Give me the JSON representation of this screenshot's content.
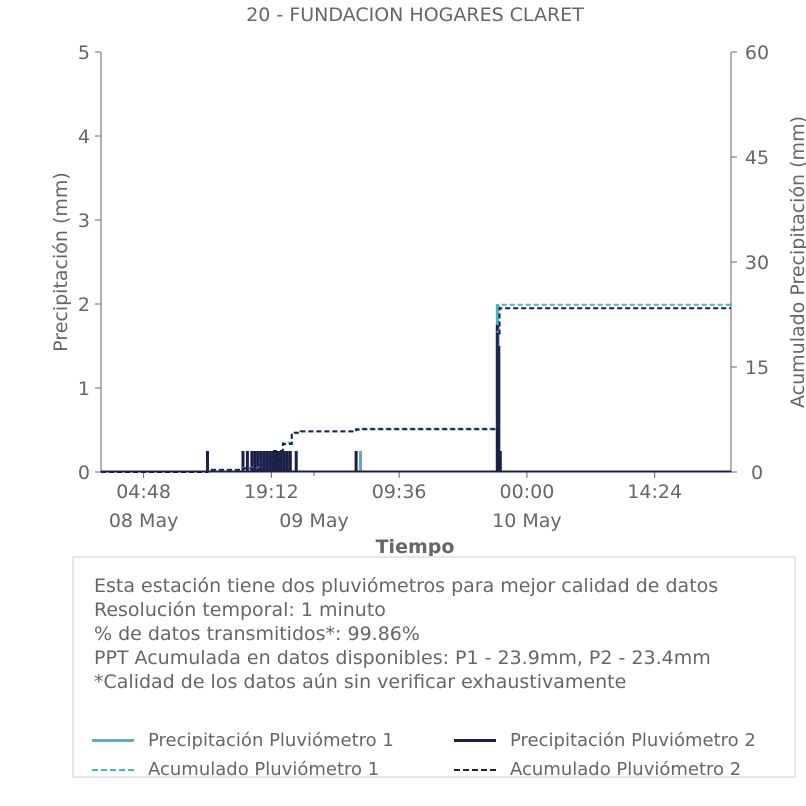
{
  "chart_data": {
    "type": "line",
    "title": "20 - FUNDACION HOGARES CLARET",
    "xlabel": "Tiempo",
    "ylabel": "Precipitación (mm)",
    "y2label": "Acumulado Precipitación (mm)",
    "x_range": [
      "2024-05-08T00:00",
      "2024-05-10T23:00"
    ],
    "ylim": [
      0,
      5
    ],
    "y2lim": [
      0,
      60
    ],
    "yticks": [
      0,
      1,
      2,
      3,
      4,
      5
    ],
    "y2ticks": [
      0,
      15,
      30,
      45,
      60
    ],
    "xticks": [
      {
        "t": "2024-05-08T04:48",
        "time": "04:48",
        "date": "08 May"
      },
      {
        "t": "2024-05-08T19:12",
        "time": "19:12",
        "date": ""
      },
      {
        "t": "2024-05-09T00:00",
        "time": "",
        "date": "09 May"
      },
      {
        "t": "2024-05-09T09:36",
        "time": "09:36",
        "date": ""
      },
      {
        "t": "2024-05-10T00:00",
        "time": "00:00",
        "date": "10 May"
      },
      {
        "t": "2024-05-10T14:24",
        "time": "14:24",
        "date": ""
      }
    ],
    "grid": false,
    "legend_position": "bottom",
    "series": [
      {
        "name": "Precipitación Pluviómetro 1",
        "axis": "left",
        "style": "bars",
        "color": "#4ab3c4",
        "points": [
          [
            "2024-05-08T20:00",
            0.25
          ],
          [
            "2024-05-09T05:15",
            0.25
          ],
          [
            "2024-05-09T20:40",
            2.0
          ],
          [
            "2024-05-09T20:45",
            1.8
          ]
        ]
      },
      {
        "name": "Precipitación Pluviómetro 2",
        "axis": "left",
        "style": "bars",
        "color": "#1c1f4a",
        "points": [
          [
            "2024-05-08T12:00",
            0.25
          ],
          [
            "2024-05-08T16:00",
            0.25
          ],
          [
            "2024-05-08T16:30",
            0.25
          ],
          [
            "2024-05-08T17:00",
            0.25
          ],
          [
            "2024-05-08T17:20",
            0.25
          ],
          [
            "2024-05-08T17:40",
            0.25
          ],
          [
            "2024-05-08T18:00",
            0.25
          ],
          [
            "2024-05-08T18:20",
            0.25
          ],
          [
            "2024-05-08T18:40",
            0.25
          ],
          [
            "2024-05-08T19:00",
            0.25
          ],
          [
            "2024-05-08T19:20",
            0.25
          ],
          [
            "2024-05-08T19:40",
            0.25
          ],
          [
            "2024-05-08T20:00",
            0.25
          ],
          [
            "2024-05-08T20:20",
            0.25
          ],
          [
            "2024-05-08T20:40",
            0.25
          ],
          [
            "2024-05-08T21:00",
            0.25
          ],
          [
            "2024-05-08T21:20",
            0.25
          ],
          [
            "2024-05-08T22:00",
            0.25
          ],
          [
            "2024-05-09T04:45",
            0.25
          ],
          [
            "2024-05-09T20:40",
            1.75
          ],
          [
            "2024-05-09T20:50",
            1.5
          ],
          [
            "2024-05-09T21:00",
            0.25
          ]
        ]
      },
      {
        "name": "Acumulado Pluviómetro 1",
        "axis": "right",
        "style": "dashed-step",
        "color": "#4ab3c4",
        "points": [
          [
            "2024-05-08T00:00",
            0
          ],
          [
            "2024-05-08T12:00",
            0.3
          ],
          [
            "2024-05-08T16:00",
            0.6
          ],
          [
            "2024-05-08T18:00",
            1.8
          ],
          [
            "2024-05-08T19:30",
            3.0
          ],
          [
            "2024-05-08T20:30",
            4.2
          ],
          [
            "2024-05-08T21:30",
            5.6
          ],
          [
            "2024-05-08T22:30",
            5.8
          ],
          [
            "2024-05-09T04:45",
            6.0
          ],
          [
            "2024-05-09T05:15",
            6.2
          ],
          [
            "2024-05-09T20:40",
            20.0
          ],
          [
            "2024-05-09T20:50",
            23.9
          ],
          [
            "2024-05-10T23:00",
            23.9
          ]
        ]
      },
      {
        "name": "Acumulado Pluviómetro 2",
        "axis": "right",
        "style": "dashed-step",
        "color": "#1c1f4a",
        "points": [
          [
            "2024-05-08T00:00",
            0
          ],
          [
            "2024-05-08T12:00",
            0.3
          ],
          [
            "2024-05-08T16:00",
            0.5
          ],
          [
            "2024-05-08T18:00",
            1.8
          ],
          [
            "2024-05-08T19:30",
            3.0
          ],
          [
            "2024-05-08T20:30",
            4.0
          ],
          [
            "2024-05-08T21:30",
            5.6
          ],
          [
            "2024-05-08T22:30",
            5.8
          ],
          [
            "2024-05-09T04:45",
            6.1
          ],
          [
            "2024-05-09T20:40",
            19.5
          ],
          [
            "2024-05-09T20:55",
            23.4
          ],
          [
            "2024-05-10T23:00",
            23.4
          ]
        ]
      }
    ]
  },
  "info": {
    "lines": [
      "Esta estación tiene dos pluviómetros para mejor calidad de datos",
      "Resolución temporal: 1 minuto",
      "% de datos transmitidos*: 99.86%",
      "PPT Acumulada en datos disponibles: P1 - 23.9mm, P2 - 23.4mm",
      "*Calidad de los datos aún sin verificar exhaustivamente"
    ]
  },
  "legend": {
    "items": [
      {
        "label": "Precipitación Pluviómetro 1",
        "color": "#4ab3c4",
        "style": "solid"
      },
      {
        "label": "Precipitación Pluviómetro 2",
        "color": "#1c1f4a",
        "style": "solid"
      },
      {
        "label": "Acumulado Pluviómetro 1",
        "color": "#4ab3c4",
        "style": "dashed"
      },
      {
        "label": "Acumulado Pluviómetro 2",
        "color": "#1c1f4a",
        "style": "dashed"
      }
    ]
  }
}
